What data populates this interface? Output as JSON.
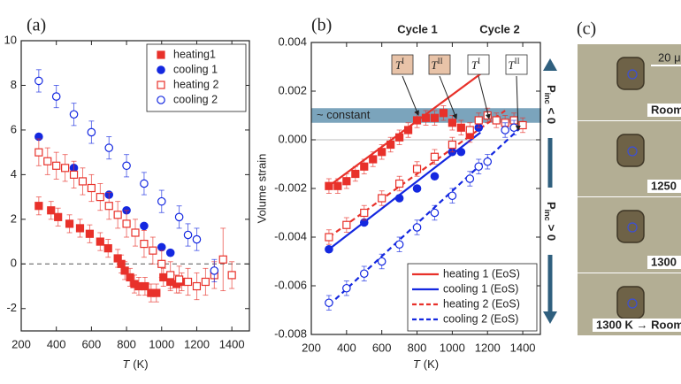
{
  "chart_data": [
    {
      "type": "scatter",
      "panel_label": "(a)",
      "xlabel": {
        "var": "T",
        "unit": "(K)"
      },
      "xlim": [
        200,
        1500
      ],
      "xticks": [
        200,
        400,
        600,
        800,
        1000,
        1200,
        1400
      ],
      "ylim": [
        -3,
        10
      ],
      "yticks": [
        -2,
        0,
        2,
        4,
        6,
        8,
        10
      ],
      "reference_line": 0,
      "legend": "upper right",
      "series": [
        {
          "name": "heating1",
          "color": "#e8312a",
          "marker": "square",
          "filled": true,
          "x": [
            300,
            370,
            410,
            475,
            535,
            590,
            650,
            695,
            750,
            770,
            790,
            820,
            845,
            870,
            905,
            940,
            970,
            1010,
            1050,
            1085,
            1115
          ],
          "values": [
            2.6,
            2.4,
            2.1,
            1.8,
            1.6,
            1.35,
            1.0,
            0.7,
            0.25,
            0.0,
            -0.3,
            -0.6,
            -0.9,
            -1.0,
            -1.0,
            -1.3,
            -1.3,
            -0.6,
            -0.8,
            -0.9,
            -0.8
          ],
          "errors": [
            0.4,
            0.4,
            0.4,
            0.4,
            0.4,
            0.4,
            0.4,
            0.4,
            0.4,
            0.4,
            0.4,
            0.4,
            0.4,
            0.4,
            0.4,
            0.4,
            0.4,
            0.4,
            0.4,
            0.4,
            0.4
          ]
        },
        {
          "name": "cooling 1",
          "color": "#1428e0",
          "marker": "circle",
          "filled": true,
          "x": [
            300,
            500,
            700,
            800,
            900,
            1000,
            1050
          ],
          "values": [
            5.7,
            4.3,
            3.1,
            2.4,
            1.7,
            0.75,
            0.5
          ]
        },
        {
          "name": "heating 2",
          "color": "#e8312a",
          "marker": "square",
          "filled": false,
          "x": [
            300,
            350,
            400,
            450,
            500,
            550,
            600,
            650,
            700,
            750,
            800,
            850,
            900,
            950,
            1000,
            1050,
            1100,
            1150,
            1200,
            1250,
            1300,
            1350,
            1400
          ],
          "values": [
            5.0,
            4.6,
            4.4,
            4.3,
            4.0,
            3.7,
            3.4,
            3.0,
            2.6,
            2.2,
            1.8,
            1.4,
            0.9,
            0.6,
            0.0,
            -0.5,
            -0.7,
            -0.8,
            -1.0,
            -0.8,
            -0.5,
            0.2,
            -0.5
          ],
          "errors": [
            0.6,
            0.6,
            0.6,
            0.6,
            0.6,
            0.6,
            0.6,
            0.6,
            0.6,
            0.6,
            0.6,
            0.6,
            0.6,
            0.6,
            0.6,
            0.6,
            0.6,
            0.6,
            0.6,
            0.6,
            0.6,
            1.4,
            0.6
          ]
        },
        {
          "name": "cooling 2",
          "color": "#1428e0",
          "marker": "circle",
          "filled": false,
          "x": [
            300,
            400,
            500,
            600,
            700,
            800,
            900,
            1000,
            1100,
            1150,
            1200,
            1300
          ],
          "values": [
            8.2,
            7.5,
            6.7,
            5.9,
            5.2,
            4.4,
            3.6,
            2.8,
            2.1,
            1.3,
            1.1,
            -0.3
          ],
          "errors": [
            0.5,
            0.5,
            0.5,
            0.5,
            0.5,
            0.5,
            0.5,
            0.5,
            0.5,
            0.5,
            0.5,
            0.5
          ]
        }
      ]
    },
    {
      "type": "scatter",
      "panel_label": "(b)",
      "ylabel": "Volume strain",
      "xlabel": {
        "var": "T",
        "unit": "(K)"
      },
      "xlim": [
        200,
        1500
      ],
      "xticks": [
        200,
        400,
        600,
        800,
        1000,
        1200,
        1400
      ],
      "ylim": [
        -0.008,
        0.004
      ],
      "yticks": [
        -0.008,
        -0.006,
        -0.004,
        -0.002,
        {
          "value": 0,
          "label": "0.000"
        },
        0.002,
        0.004
      ],
      "reference_line": 0,
      "legend": "lower right",
      "band": {
        "range": [
          0.0007,
          0.0013
        ],
        "label": "~ constant",
        "color": "#4f86a6"
      },
      "cycle_labels": [
        {
          "text": "Cycle 1",
          "color": "#e8312a"
        },
        {
          "text": "Cycle 2",
          "color": "#111111"
        }
      ],
      "transition_labels": [
        {
          "base": "T",
          "sup": "I",
          "color": "#e8c3a8"
        },
        {
          "base": "T",
          "sup": "II",
          "color": "#e8c3a8"
        },
        {
          "base": "T",
          "sup": "I",
          "color": "#ffffff"
        },
        {
          "base": "T",
          "sup": "II",
          "color": "#ffffff"
        }
      ],
      "pressure_labels": [
        {
          "p": "P",
          "sub": "inc",
          "rel": "< 0"
        },
        {
          "p": "P",
          "sub": "inc",
          "rel": "> 0"
        }
      ],
      "series": [
        {
          "color": "#e8312a",
          "marker": "square",
          "filled": true,
          "x": [
            300,
            350,
            400,
            450,
            500,
            550,
            600,
            650,
            700,
            750,
            800,
            850,
            900,
            950,
            1000,
            1050,
            1100
          ],
          "values": [
            -0.0019,
            -0.0019,
            -0.0017,
            -0.0014,
            -0.0011,
            -0.0008,
            -0.0005,
            -0.0002,
            0.0001,
            0.0004,
            0.0008,
            0.0009,
            0.0009,
            0.0011,
            0.0007,
            0.0005,
            0.0002
          ],
          "errors": [
            0.0003,
            0.0003,
            0.0003,
            0.0003,
            0.0003,
            0.0003,
            0.0003,
            0.0003,
            0.0003,
            0.0003,
            0.0003,
            0.0003,
            0.0003,
            0.0003,
            0.0003,
            0.0003,
            0.0003
          ]
        },
        {
          "color": "#1428e0",
          "marker": "circle",
          "filled": true,
          "x": [
            300,
            500,
            700,
            800,
            900,
            1000,
            1050,
            1150
          ],
          "values": [
            -0.0045,
            -0.0034,
            -0.0024,
            -0.002,
            -0.0015,
            -0.0005,
            -0.0005,
            0.0005
          ]
        },
        {
          "color": "#e8312a",
          "marker": "square",
          "filled": false,
          "x": [
            300,
            400,
            500,
            600,
            700,
            800,
            900,
            1000,
            1100,
            1150,
            1200,
            1250,
            1300,
            1350,
            1400
          ],
          "values": [
            -0.004,
            -0.0035,
            -0.003,
            -0.0024,
            -0.0018,
            -0.0012,
            -0.0007,
            -0.0002,
            0.0004,
            0.0008,
            0.001,
            0.0008,
            0.0007,
            0.0008,
            0.0006
          ],
          "errors": [
            0.0003,
            0.0003,
            0.0003,
            0.0003,
            0.0003,
            0.0003,
            0.0003,
            0.0003,
            0.0003,
            0.0003,
            0.0003,
            0.0003,
            0.0003,
            0.0003,
            0.0003
          ]
        },
        {
          "color": "#1428e0",
          "marker": "circle",
          "filled": false,
          "x": [
            300,
            400,
            500,
            600,
            700,
            800,
            900,
            1000,
            1100,
            1150,
            1200,
            1300,
            1350
          ],
          "values": [
            -0.0067,
            -0.0061,
            -0.0055,
            -0.005,
            -0.0043,
            -0.0036,
            -0.003,
            -0.0023,
            -0.0016,
            -0.0011,
            -0.0009,
            0.0004,
            0.0005
          ],
          "errors": [
            0.0003,
            0.0003,
            0.0003,
            0.0003,
            0.0003,
            0.0003,
            0.0003,
            0.0003,
            0.0003,
            0.0003,
            0.0003,
            0.0003,
            0.0003
          ]
        }
      ],
      "lines": [
        {
          "name": "heating 1 (EoS)",
          "color": "#e8312a",
          "dashed": false,
          "x": [
            300,
            1185
          ],
          "values": [
            -0.0019,
            0.00284
          ]
        },
        {
          "name": "cooling 1 (EoS)",
          "color": "#1428e0",
          "dashed": false,
          "x": [
            300,
            1160
          ],
          "values": [
            -0.0045,
            0.0003
          ]
        },
        {
          "name": "heating 2 (EoS)",
          "color": "#e8312a",
          "dashed": true,
          "x": [
            300,
            1300
          ],
          "values": [
            -0.004,
            0.0012
          ]
        },
        {
          "name": "cooling 2 (EoS)",
          "color": "#1428e0",
          "dashed": true,
          "x": [
            300,
            1410
          ],
          "values": [
            -0.0068,
            0.00065
          ]
        }
      ]
    }
  ],
  "panel_c": {
    "panel_label": "(c)",
    "scale_bar": "20 μ",
    "frames": [
      "Room",
      "1250",
      "1300",
      "1300 K → Room"
    ]
  }
}
